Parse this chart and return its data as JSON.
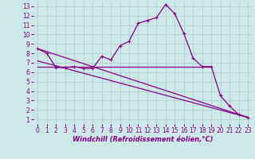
{
  "bg_color": "#cce8e8",
  "grid_color": "#aacccc",
  "line_color": "#880088",
  "xlabel": "Windchill (Refroidissement éolien,°C)",
  "xlim": [
    -0.5,
    23.5
  ],
  "ylim": [
    0.5,
    13.5
  ],
  "xticks": [
    0,
    1,
    2,
    3,
    4,
    5,
    6,
    7,
    8,
    9,
    10,
    11,
    12,
    13,
    14,
    15,
    16,
    17,
    18,
    19,
    20,
    21,
    22,
    23
  ],
  "yticks": [
    1,
    2,
    3,
    4,
    5,
    6,
    7,
    8,
    9,
    10,
    11,
    12,
    13
  ],
  "series1_x": [
    0,
    1,
    2,
    3,
    4,
    5,
    6,
    7,
    8,
    9,
    10,
    11,
    12,
    13,
    14,
    15,
    16,
    17,
    18,
    19,
    20,
    21,
    22,
    23
  ],
  "series1_y": [
    8.5,
    8.0,
    6.5,
    6.5,
    6.6,
    6.4,
    6.4,
    7.7,
    7.3,
    8.8,
    9.3,
    11.2,
    11.5,
    11.8,
    13.2,
    12.2,
    10.1,
    7.5,
    6.6,
    6.6,
    3.5,
    2.4,
    1.5,
    1.2
  ],
  "series2_x": [
    0,
    19
  ],
  "series2_y": [
    6.6,
    6.6
  ],
  "series3_x": [
    0,
    23
  ],
  "series3_y": [
    8.5,
    1.2
  ],
  "series4_x": [
    0,
    23
  ],
  "series4_y": [
    7.2,
    1.2
  ],
  "tick_fontsize": 5.5,
  "xlabel_fontsize": 6
}
